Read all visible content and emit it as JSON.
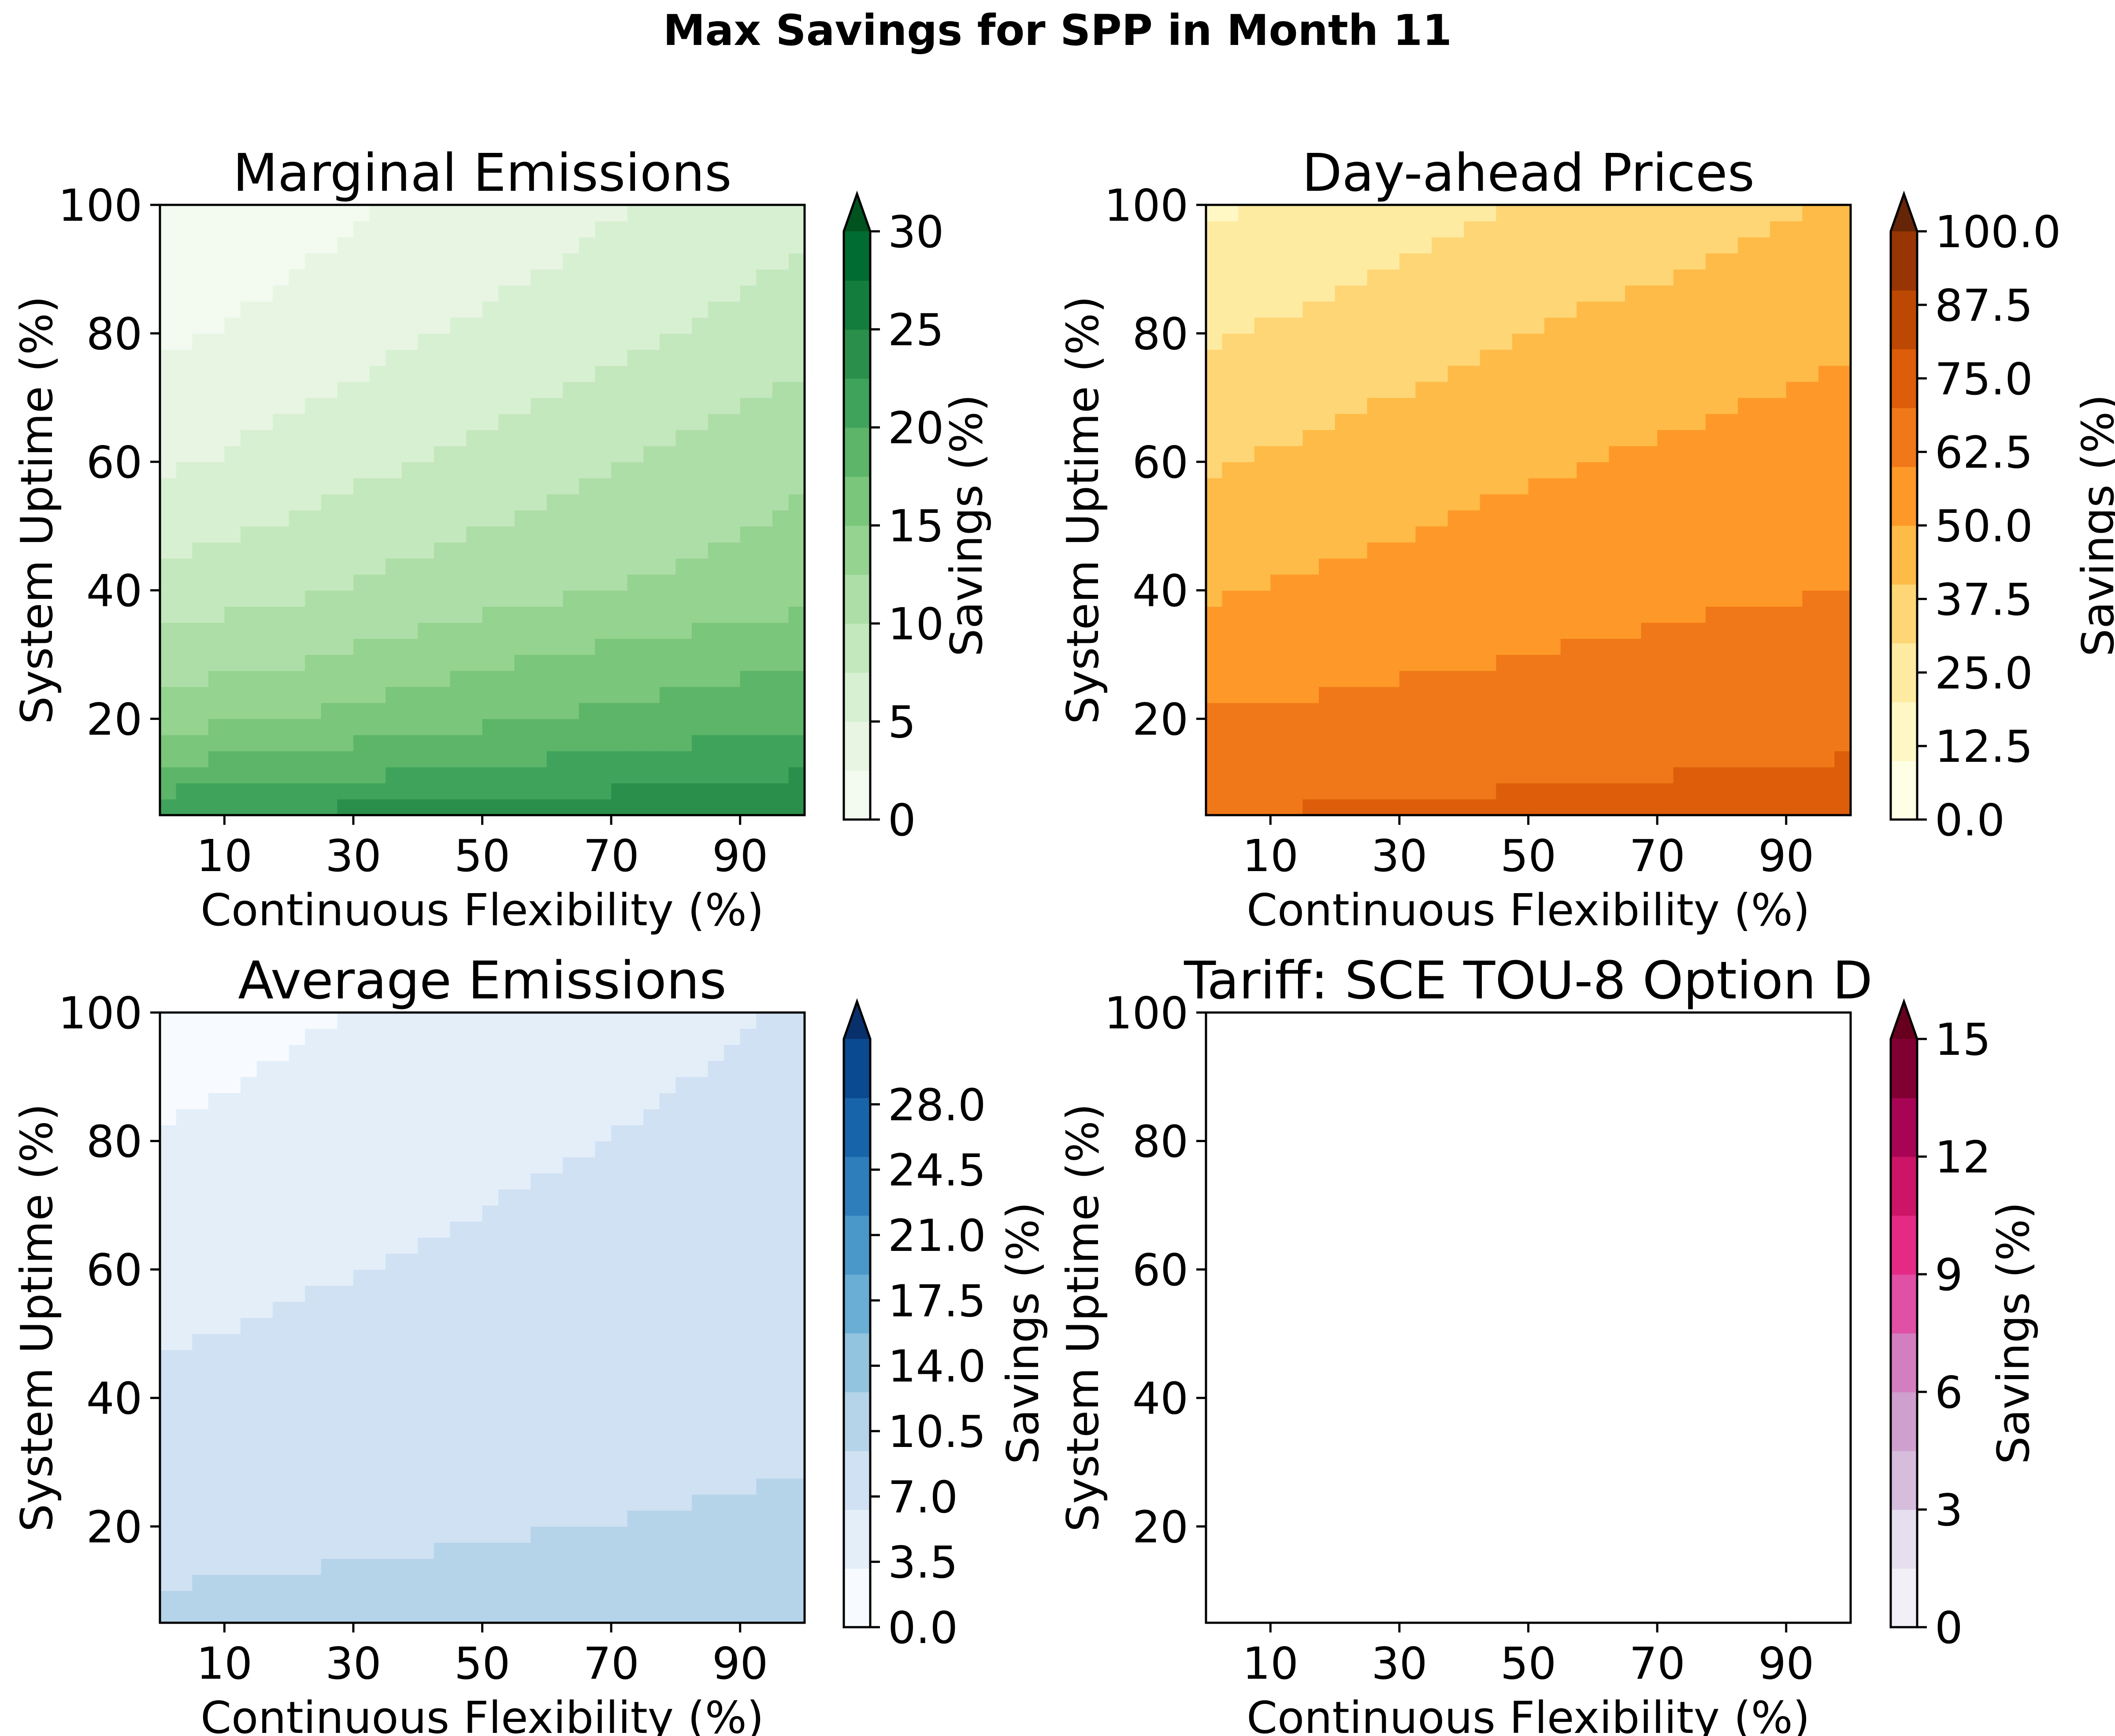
{
  "figure_title": "Max Savings for SPP in Month 11",
  "chart_data": [
    {
      "type": "heatmap",
      "style": "filled-contour",
      "title": "Marginal Emissions",
      "xlabel": "Continuous Flexibility (%)",
      "ylabel": "System Uptime (%)",
      "xlim": [
        0,
        100
      ],
      "ylim": [
        5,
        100
      ],
      "xticks": [
        "10",
        "30",
        "50",
        "70",
        "90"
      ],
      "yticks": [
        "20",
        "40",
        "60",
        "80",
        "100"
      ],
      "colorbar": {
        "label": "Savings (%)",
        "ticks": [
          "0",
          "5",
          "10",
          "15",
          "20",
          "25",
          "30"
        ],
        "min": 0,
        "max": 30,
        "extend": "max",
        "colormap": "Greens",
        "colors": [
          "#f3faf0",
          "#e8f5e3",
          "#d8f0d2",
          "#c4e8bd",
          "#aedea7",
          "#95d390",
          "#7ac67a",
          "#5cb569",
          "#3fa35b",
          "#2b8f4c",
          "#137d3e",
          "#006c31",
          "#00521f"
        ]
      },
      "grid": false,
      "z_samples": {
        "x": [
          0,
          20,
          40,
          60,
          80,
          100
        ],
        "y": [
          5,
          10,
          20,
          30,
          40,
          60,
          80,
          100
        ],
        "z": [
          [
            22.5,
            23.0,
            23.5,
            24.0,
            24.5,
            25.0
          ],
          [
            19.0,
            20.0,
            20.8,
            21.5,
            22.3,
            23.0
          ],
          [
            14.0,
            15.0,
            16.5,
            17.5,
            18.5,
            19.5
          ],
          [
            11.0,
            12.0,
            13.5,
            15.0,
            16.0,
            17.0
          ],
          [
            8.5,
            9.5,
            11.0,
            12.0,
            13.0,
            14.0
          ],
          [
            4.5,
            6.0,
            7.5,
            9.0,
            10.5,
            12.0
          ],
          [
            2.0,
            3.3,
            4.8,
            6.0,
            7.5,
            9.0
          ],
          [
            0.3,
            1.5,
            2.8,
            4.0,
            5.5,
            6.5
          ]
        ]
      }
    },
    {
      "type": "heatmap",
      "style": "filled-contour",
      "title": "Day-ahead Prices",
      "xlabel": "Continuous Flexibility (%)",
      "ylabel": "System Uptime (%)",
      "xlim": [
        0,
        100
      ],
      "ylim": [
        5,
        100
      ],
      "xticks": [
        "10",
        "30",
        "50",
        "70",
        "90"
      ],
      "yticks": [
        "20",
        "40",
        "60",
        "80",
        "100"
      ],
      "colorbar": {
        "label": "Savings (%)",
        "ticks": [
          "0.0",
          "12.5",
          "25.0",
          "37.5",
          "50.0",
          "62.5",
          "75.0",
          "87.5",
          "100.0"
        ],
        "min": 0,
        "max": 100,
        "extend": "max",
        "colormap": "YlOrBr",
        "colors": [
          "#ffffe5",
          "#fff8c4",
          "#feeba2",
          "#fed676",
          "#febb47",
          "#fe9929",
          "#f07818",
          "#dd5d0b",
          "#bc4803",
          "#973504",
          "#662506"
        ]
      },
      "grid": false,
      "z_samples": {
        "x": [
          0,
          20,
          40,
          60,
          80,
          100
        ],
        "y": [
          5,
          10,
          20,
          30,
          40,
          60,
          80,
          100
        ],
        "z": [
          [
            70,
            71,
            72,
            73,
            74,
            75
          ],
          [
            67,
            68,
            69,
            70,
            71,
            72
          ],
          [
            61,
            62,
            64,
            65,
            66,
            67
          ],
          [
            55,
            57,
            59,
            61,
            62,
            63
          ],
          [
            49,
            52,
            55,
            57,
            59,
            60
          ],
          [
            39,
            43,
            47,
            50,
            53,
            55
          ],
          [
            29,
            33,
            38,
            42,
            45,
            49
          ],
          [
            18,
            23,
            28,
            33,
            37,
            41
          ]
        ]
      }
    },
    {
      "type": "heatmap",
      "style": "filled-contour",
      "title": "Average Emissions",
      "xlabel": "Continuous Flexibility (%)",
      "ylabel": "System Uptime (%)",
      "xlim": [
        0,
        100
      ],
      "ylim": [
        5,
        100
      ],
      "xticks": [
        "10",
        "30",
        "50",
        "70",
        "90"
      ],
      "yticks": [
        "20",
        "40",
        "60",
        "80",
        "100"
      ],
      "colorbar": {
        "label": "Savings (%)",
        "ticks": [
          "0.0",
          "3.5",
          "7.0",
          "10.5",
          "14.0",
          "17.5",
          "21.0",
          "24.5",
          "28.0"
        ],
        "min": 0,
        "max": 31.5,
        "extend": "max",
        "colormap": "Blues",
        "colors": [
          "#f7fbff",
          "#e3eef9",
          "#cfe1f2",
          "#b5d4e9",
          "#93c4df",
          "#6aaed6",
          "#4a98c9",
          "#2e7ebc",
          "#1864aa",
          "#0a4a90",
          "#08306b"
        ]
      },
      "grid": false,
      "z_samples": {
        "x": [
          0,
          20,
          40,
          60,
          80,
          100
        ],
        "y": [
          5,
          10,
          20,
          30,
          40,
          60,
          80,
          100
        ],
        "z": [
          [
            10.0,
            10.1,
            10.2,
            10.3,
            10.4,
            10.5
          ],
          [
            9.5,
            9.7,
            9.8,
            9.9,
            10.0,
            10.1
          ],
          [
            8.6,
            8.9,
            9.2,
            9.4,
            9.6,
            9.8
          ],
          [
            7.7,
            8.1,
            8.5,
            8.8,
            9.1,
            9.4
          ],
          [
            6.9,
            7.4,
            7.9,
            8.3,
            8.6,
            8.9
          ],
          [
            5.2,
            5.9,
            6.6,
            7.2,
            7.7,
            8.2
          ],
          [
            3.4,
            4.3,
            5.2,
            6.0,
            6.7,
            7.4
          ],
          [
            1.5,
            2.7,
            3.8,
            4.8,
            5.7,
            6.6
          ]
        ]
      }
    },
    {
      "type": "heatmap",
      "style": "filled-contour",
      "title": "Tariff: SCE TOU-8 Option D",
      "xlabel": "Continuous Flexibility (%)",
      "ylabel": "System Uptime (%)",
      "xlim": [
        0,
        100
      ],
      "ylim": [
        5,
        100
      ],
      "xticks": [
        "10",
        "30",
        "50",
        "70",
        "90"
      ],
      "yticks": [
        "20",
        "40",
        "60",
        "80",
        "100"
      ],
      "colorbar": {
        "label": "Savings (%)",
        "ticks": [
          "0",
          "3",
          "6",
          "9",
          "12",
          "15"
        ],
        "min": 0,
        "max": 15,
        "extend": "max",
        "colormap": "PuRd",
        "colors": [
          "#f3eff7",
          "#e6dff0",
          "#d6bddc",
          "#cf9fce",
          "#d37ec0",
          "#e050a5",
          "#e52a86",
          "#cc1567",
          "#a80456",
          "#800032",
          "#67001f"
        ]
      },
      "grid": false,
      "z_samples": "empty"
    }
  ]
}
